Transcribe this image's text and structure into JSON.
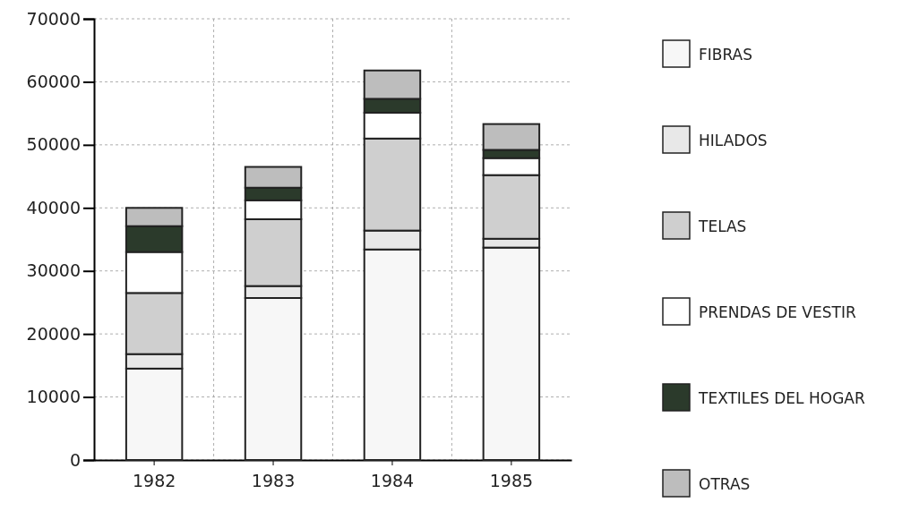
{
  "chart_data": {
    "type": "bar",
    "stacked": true,
    "categories": [
      "1982",
      "1983",
      "1984",
      "1985"
    ],
    "series": [
      {
        "name": "FIBRAS",
        "color": "#f7f7f7",
        "values": [
          14500,
          25700,
          33400,
          33700
        ]
      },
      {
        "name": "HILADOS",
        "color": "#e8e8e8",
        "values": [
          2300,
          1900,
          3000,
          1400
        ]
      },
      {
        "name": "TELAS",
        "color": "#cfcfcf",
        "values": [
          9700,
          10600,
          14600,
          10100
        ]
      },
      {
        "name": "PRENDAS DE VESTIR",
        "color": "#ffffff",
        "values": [
          6500,
          3000,
          4100,
          2700
        ]
      },
      {
        "name": "TEXTILES DEL HOGAR",
        "color": "#2b3a2b",
        "values": [
          4100,
          2000,
          2200,
          1300
        ]
      },
      {
        "name": "OTRAS",
        "color": "#bdbdbd",
        "values": [
          2900,
          3300,
          4500,
          4100
        ]
      }
    ],
    "ylim": [
      0,
      70000
    ],
    "yticks": [
      0,
      10000,
      20000,
      30000,
      40000,
      50000,
      60000,
      70000
    ],
    "grid": true,
    "legend": "right"
  }
}
